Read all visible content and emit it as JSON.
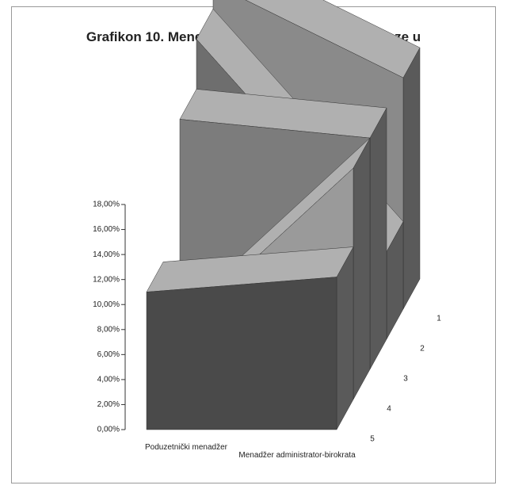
{
  "chart_data": {
    "type": "area3d",
    "title": "Grafikon 10. Menedžeri prema načinu na koji ulaze u interakcije",
    "categories": [
      "Poduzetnički menadžer",
      "Menadžer administrator-birokrata"
    ],
    "series": [
      {
        "name": "1",
        "color": "#8a8a8a",
        "values": [
          26,
          18.5
        ]
      },
      {
        "name": "2",
        "color": "#6e6e6e",
        "values": [
          24,
          7
        ]
      },
      {
        "name": "3",
        "color": "#7c7c7c",
        "values": [
          20,
          18.5
        ]
      },
      {
        "name": "4",
        "color": "#9a9a9a",
        "values": [
          4.5,
          18.5
        ]
      },
      {
        "name": "5",
        "color": "#4a4a4a",
        "values": [
          11,
          12.2
        ]
      }
    ],
    "ylim": [
      0,
      18
    ],
    "yticks": [
      {
        "value": 0,
        "label": "0,00%"
      },
      {
        "value": 2,
        "label": "2,00%"
      },
      {
        "value": 4,
        "label": "4,00%"
      },
      {
        "value": 6,
        "label": "6,00%"
      },
      {
        "value": 8,
        "label": "8,00%"
      },
      {
        "value": 10,
        "label": "10,00%"
      },
      {
        "value": 12,
        "label": "12,00%"
      },
      {
        "value": 14,
        "label": "14,00%"
      },
      {
        "value": 16,
        "label": "16,00%"
      },
      {
        "value": 18,
        "label": "18,00%"
      }
    ]
  }
}
